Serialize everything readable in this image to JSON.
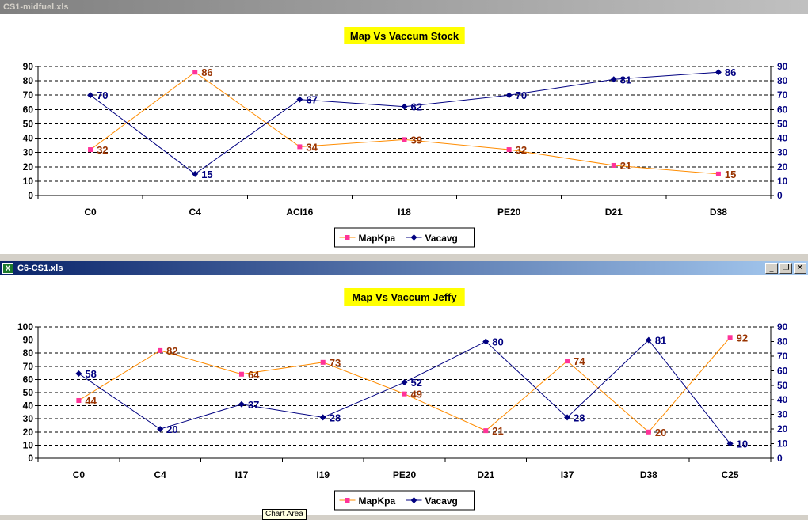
{
  "windows": [
    {
      "title": "CS1-midfuel.xls",
      "active": false
    },
    {
      "title": "C6-CS1.xls",
      "active": true
    }
  ],
  "tooltip": "Chart Area",
  "colors": {
    "map": "#ff8c00",
    "map_marker": "#ff3399",
    "map_label": "#993300",
    "vac": "#000080",
    "title_bg": "#ffff00"
  },
  "chart_data": [
    {
      "type": "line",
      "title": "Map Vs Vaccum Stock",
      "categories": [
        "C0",
        "C4",
        "ACI16",
        "I18",
        "PE20",
        "D21",
        "D38"
      ],
      "series": [
        {
          "name": "MapKpa",
          "axis": "left",
          "values": [
            32,
            86,
            34,
            39,
            32,
            21,
            15
          ]
        },
        {
          "name": "Vacavg",
          "axis": "right",
          "values": [
            70,
            15,
            67,
            62,
            70,
            81,
            86
          ]
        }
      ],
      "ylim_left": [
        0,
        90
      ],
      "yticks_left": [
        0,
        10,
        20,
        30,
        40,
        50,
        60,
        70,
        80,
        90
      ],
      "ylim_right": [
        0,
        90
      ],
      "yticks_right": [
        0,
        10,
        20,
        30,
        40,
        50,
        60,
        70,
        80,
        90
      ],
      "grid": true,
      "legend_position": "bottom"
    },
    {
      "type": "line",
      "title": "Map Vs Vaccum Jeffy",
      "categories": [
        "C0",
        "C4",
        "I17",
        "I19",
        "PE20",
        "D21",
        "I37",
        "D38",
        "C25"
      ],
      "series": [
        {
          "name": "MapKpa",
          "axis": "left",
          "values": [
            44,
            82,
            64,
            73,
            49,
            21,
            74,
            20,
            92
          ]
        },
        {
          "name": "Vacavg",
          "axis": "right",
          "values": [
            58,
            20,
            37,
            28,
            52,
            80,
            28,
            81,
            10
          ]
        }
      ],
      "ylim_left": [
        0,
        100
      ],
      "yticks_left": [
        0,
        10,
        20,
        30,
        40,
        50,
        60,
        70,
        80,
        90,
        100
      ],
      "ylim_right": [
        0,
        90
      ],
      "yticks_right": [
        0,
        10,
        20,
        30,
        40,
        50,
        60,
        70,
        80,
        90
      ],
      "grid": true,
      "legend_position": "bottom"
    }
  ]
}
